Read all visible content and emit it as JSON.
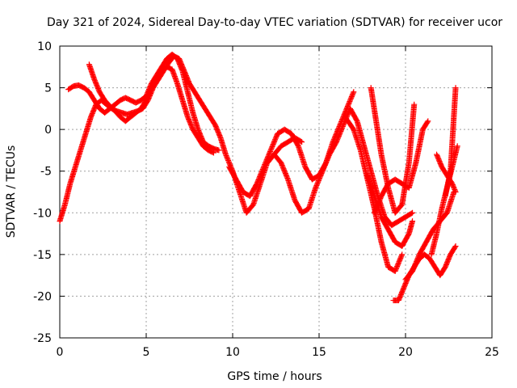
{
  "chart_data": {
    "type": "scatter",
    "title": "Day 321 of 2024, Sidereal Day-to-day VTEC variation (SDTVAR) for receiver ucor",
    "xlabel": "GPS time / hours",
    "ylabel": "SDTVAR / TECUs",
    "xlim": [
      0,
      25
    ],
    "ylim": [
      -25,
      10
    ],
    "x_ticks": [
      0,
      5,
      10,
      15,
      20,
      25
    ],
    "y_ticks": [
      -25,
      -20,
      -15,
      -10,
      -5,
      0,
      5,
      10
    ],
    "x_tick_labels": [
      "0",
      "5",
      "10",
      "15",
      "20",
      "25"
    ],
    "y_tick_labels": [
      "-25",
      "-20",
      "-15",
      "-10",
      "-5",
      "0",
      "5",
      "10"
    ],
    "grid": true,
    "marker": "+",
    "color": "#ff0000",
    "series": [
      {
        "x": [
          0.0,
          0.3,
          0.6,
          0.9,
          1.2,
          1.5,
          1.8,
          2.1,
          2.4,
          2.7,
          3.0,
          3.3,
          3.6,
          3.9,
          4.2,
          4.5,
          4.8,
          5.1,
          5.4,
          5.7,
          6.0,
          6.3,
          6.6,
          6.9,
          7.2,
          7.5,
          7.8,
          8.1,
          8.4,
          8.7,
          9.0,
          9.3,
          9.6,
          10.0,
          10.4,
          10.8,
          11.2,
          11.6,
          12.0,
          12.4,
          12.8,
          13.2,
          13.6,
          14.0,
          14.4,
          14.8,
          15.2,
          15.6,
          16.0,
          16.4,
          16.8,
          17.2,
          17.6,
          18.0,
          18.4,
          18.8,
          19.2,
          19.6,
          20.0,
          20.4
        ],
        "y": [
          -11.0,
          -9.0,
          -6.5,
          -4.5,
          -2.5,
          -0.5,
          1.5,
          3.0,
          3.5,
          3.0,
          2.5,
          2.2,
          2.0,
          1.8,
          2.0,
          2.2,
          2.5,
          3.5,
          5.0,
          6.0,
          7.0,
          8.0,
          8.8,
          8.5,
          7.0,
          5.5,
          4.5,
          3.5,
          2.5,
          1.5,
          0.5,
          -1.0,
          -3.0,
          -5.0,
          -7.5,
          -10.0,
          -9.0,
          -6.5,
          -4.0,
          -3.0,
          -4.0,
          -6.0,
          -8.5,
          -10.0,
          -9.5,
          -7.0,
          -5.0,
          -3.0,
          -1.5,
          0.5,
          2.5,
          1.0,
          -2.0,
          -5.0,
          -8.0,
          -10.5,
          -11.5,
          -11.0,
          -10.5,
          -10.0
        ]
      },
      {
        "x": [
          0.5,
          0.8,
          1.1,
          1.4,
          1.7,
          2.0,
          2.3,
          2.6,
          2.9,
          3.2,
          3.5,
          3.8,
          4.1,
          4.4,
          4.7,
          5.0,
          5.3,
          5.6,
          5.9,
          6.2,
          6.5,
          6.8,
          7.1,
          7.4,
          7.7,
          8.0,
          8.3,
          8.6,
          8.9,
          9.2
        ],
        "y": [
          4.8,
          5.2,
          5.3,
          5.0,
          4.5,
          3.5,
          2.5,
          2.0,
          2.5,
          3.0,
          3.5,
          3.8,
          3.5,
          3.2,
          3.5,
          4.0,
          5.5,
          6.5,
          7.5,
          8.5,
          9.0,
          8.5,
          7.0,
          4.5,
          2.0,
          0.0,
          -1.5,
          -2.0,
          -2.3,
          -2.5
        ]
      },
      {
        "x": [
          1.7,
          2.0,
          2.3,
          2.6,
          2.9,
          3.2,
          3.5,
          3.8,
          4.1,
          4.4,
          4.7,
          5.0,
          5.3,
          5.6,
          5.9,
          6.2,
          6.5,
          6.8,
          7.1,
          7.4,
          7.7,
          8.0,
          8.3,
          8.6,
          8.9
        ],
        "y": [
          7.8,
          6.0,
          4.5,
          3.5,
          2.8,
          2.2,
          1.5,
          1.0,
          1.5,
          2.0,
          2.5,
          3.5,
          5.0,
          6.0,
          7.0,
          7.5,
          7.2,
          5.5,
          3.5,
          1.5,
          0.0,
          -1.0,
          -2.0,
          -2.5,
          -2.8
        ]
      },
      {
        "x": [
          9.8,
          10.2,
          10.6,
          11.0,
          11.4,
          11.8,
          12.2,
          12.6,
          13.0,
          13.4,
          13.8,
          14.2,
          14.6,
          15.0,
          15.4,
          15.8,
          16.2,
          16.6,
          17.0
        ],
        "y": [
          -4.5,
          -6.0,
          -7.5,
          -8.0,
          -6.5,
          -4.5,
          -2.5,
          -0.5,
          0.0,
          -0.5,
          -2.0,
          -4.5,
          -6.0,
          -5.5,
          -4.0,
          -1.5,
          0.5,
          2.5,
          4.5
        ]
      },
      {
        "x": [
          12.0,
          12.4,
          12.8,
          13.2,
          13.6,
          14.0
        ],
        "y": [
          -4.0,
          -3.0,
          -2.0,
          -1.5,
          -1.0,
          -1.5
        ]
      },
      {
        "x": [
          16.5,
          17.0,
          17.4,
          17.8,
          18.2,
          18.6,
          19.0,
          19.4,
          19.8
        ],
        "y": [
          1.5,
          0.0,
          -2.5,
          -6.0,
          -9.5,
          -13.5,
          -16.5,
          -17.0,
          -15.0
        ]
      },
      {
        "x": [
          17.8,
          18.2,
          18.6,
          19.0,
          19.4,
          19.8,
          20.2,
          20.4
        ],
        "y": [
          -5.5,
          -8.0,
          -10.5,
          -12.0,
          -13.5,
          -14.0,
          -12.5,
          -11.0
        ]
      },
      {
        "x": [
          18.0,
          18.3,
          18.6,
          19.0,
          19.4,
          19.8,
          20.2,
          20.5
        ],
        "y": [
          5.0,
          1.0,
          -3.0,
          -7.0,
          -10.0,
          -9.0,
          -4.0,
          3.0
        ]
      },
      {
        "x": [
          18.2,
          18.6,
          19.0,
          19.4,
          19.8,
          20.2,
          20.6,
          21.0,
          21.3
        ],
        "y": [
          -10.0,
          -8.0,
          -6.5,
          -6.0,
          -6.5,
          -7.0,
          -4.0,
          0.0,
          1.0
        ]
      },
      {
        "x": [
          19.3,
          19.6,
          19.9,
          20.2,
          20.5,
          20.8,
          21.1,
          21.4,
          21.7,
          22.0,
          22.3,
          22.6,
          22.9
        ],
        "y": [
          -20.5,
          -20.5,
          -19.0,
          -17.5,
          -16.5,
          -15.5,
          -15.0,
          -15.5,
          -16.5,
          -17.5,
          -16.5,
          -15.0,
          -14.0
        ]
      },
      {
        "x": [
          20.0,
          20.4,
          20.8,
          21.2,
          21.6,
          22.0,
          22.4,
          22.8
        ],
        "y": [
          -18.0,
          -17.0,
          -15.0,
          -13.5,
          -12.0,
          -11.0,
          -10.0,
          -7.5
        ]
      },
      {
        "x": [
          21.5,
          21.8,
          22.1,
          22.4,
          22.7,
          23.0
        ],
        "y": [
          -15.0,
          -12.5,
          -9.5,
          -7.0,
          -4.5,
          -2.0
        ]
      },
      {
        "x": [
          21.8,
          22.1,
          22.4,
          22.7,
          22.9
        ],
        "y": [
          -3.0,
          -4.5,
          -5.5,
          -6.5,
          -7.5
        ]
      },
      {
        "x": [
          22.3,
          22.6,
          22.9
        ],
        "y": [
          -8.0,
          -5.0,
          5.0
        ]
      }
    ]
  }
}
